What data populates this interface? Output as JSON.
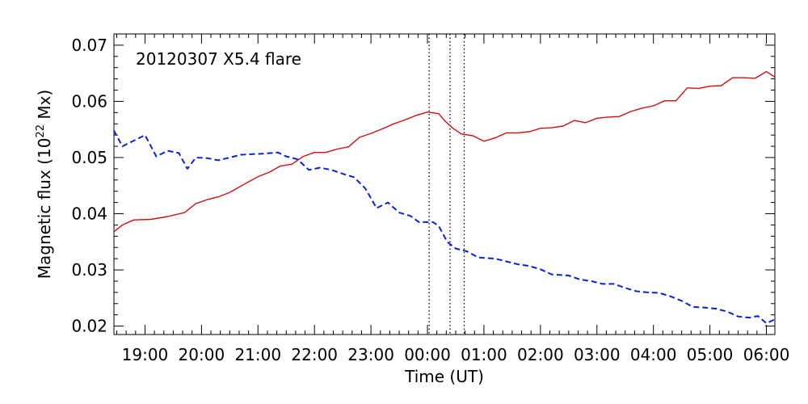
{
  "chart_data": {
    "type": "line",
    "title": "",
    "annotation": "20120307 X5.4 flare",
    "xlabel": "Time (UT)",
    "ylabel_main": "Magnetic flux (10",
    "ylabel_exp": "22",
    "ylabel_tail": " Mx)",
    "x_unit": "hours UT (continuing past midnight)",
    "xlim": [
      18.45,
      30.15
    ],
    "ylim": [
      0.0185,
      0.072
    ],
    "x_ticks": [
      19,
      20,
      21,
      22,
      23,
      24,
      25,
      26,
      27,
      28,
      29,
      30
    ],
    "x_tick_labels": [
      "19:00",
      "20:00",
      "21:00",
      "22:00",
      "23:00",
      "00:00",
      "01:00",
      "02:00",
      "03:00",
      "04:00",
      "05:00",
      "06:00"
    ],
    "y_ticks": [
      0.02,
      0.03,
      0.04,
      0.05,
      0.06,
      0.07
    ],
    "y_tick_labels": [
      "0.02",
      "0.03",
      "0.04",
      "0.05",
      "0.06",
      "0.07"
    ],
    "grid": false,
    "vertical_markers": [
      24.03,
      24.4,
      24.65
    ],
    "series": [
      {
        "color": "#d01010",
        "style": "solid",
        "points": [
          [
            18.45,
            0.0368
          ],
          [
            18.6,
            0.038
          ],
          [
            18.8,
            0.0389
          ],
          [
            19.1,
            0.039
          ],
          [
            19.4,
            0.0395
          ],
          [
            19.7,
            0.0402
          ],
          [
            19.9,
            0.0418
          ],
          [
            20.1,
            0.0425
          ],
          [
            20.3,
            0.043
          ],
          [
            20.5,
            0.0438
          ],
          [
            20.8,
            0.0455
          ],
          [
            21.0,
            0.0466
          ],
          [
            21.2,
            0.0474
          ],
          [
            21.4,
            0.0485
          ],
          [
            21.6,
            0.0488
          ],
          [
            21.8,
            0.0502
          ],
          [
            22.0,
            0.0509
          ],
          [
            22.2,
            0.0509
          ],
          [
            22.4,
            0.0515
          ],
          [
            22.6,
            0.0519
          ],
          [
            22.8,
            0.0536
          ],
          [
            23.0,
            0.0543
          ],
          [
            23.2,
            0.0551
          ],
          [
            23.4,
            0.056
          ],
          [
            23.6,
            0.0567
          ],
          [
            23.8,
            0.0575
          ],
          [
            24.0,
            0.0581
          ],
          [
            24.2,
            0.0578
          ],
          [
            24.3,
            0.0566
          ],
          [
            24.45,
            0.0552
          ],
          [
            24.6,
            0.0542
          ],
          [
            24.8,
            0.0539
          ],
          [
            25.0,
            0.0529
          ],
          [
            25.2,
            0.0535
          ],
          [
            25.4,
            0.0544
          ],
          [
            25.6,
            0.0544
          ],
          [
            25.8,
            0.0546
          ],
          [
            26.0,
            0.0552
          ],
          [
            26.2,
            0.0553
          ],
          [
            26.4,
            0.0556
          ],
          [
            26.6,
            0.0566
          ],
          [
            26.8,
            0.0562
          ],
          [
            27.0,
            0.057
          ],
          [
            27.2,
            0.0572
          ],
          [
            27.4,
            0.0573
          ],
          [
            27.6,
            0.0582
          ],
          [
            27.8,
            0.0588
          ],
          [
            28.0,
            0.0592
          ],
          [
            28.2,
            0.0601
          ],
          [
            28.4,
            0.0601
          ],
          [
            28.6,
            0.0624
          ],
          [
            28.8,
            0.0623
          ],
          [
            29.0,
            0.0627
          ],
          [
            29.2,
            0.0628
          ],
          [
            29.4,
            0.0642
          ],
          [
            29.6,
            0.0642
          ],
          [
            29.8,
            0.0641
          ],
          [
            30.0,
            0.0653
          ],
          [
            30.15,
            0.0643
          ]
        ]
      },
      {
        "color": "#0a22e0",
        "style": "dashed",
        "points": [
          [
            18.45,
            0.0548
          ],
          [
            18.6,
            0.052
          ],
          [
            18.8,
            0.053
          ],
          [
            19.0,
            0.054
          ],
          [
            19.2,
            0.0502
          ],
          [
            19.4,
            0.0512
          ],
          [
            19.6,
            0.0508
          ],
          [
            19.75,
            0.048
          ],
          [
            19.9,
            0.05
          ],
          [
            20.1,
            0.0499
          ],
          [
            20.3,
            0.0495
          ],
          [
            20.5,
            0.05
          ],
          [
            20.7,
            0.0505
          ],
          [
            20.9,
            0.0506
          ],
          [
            21.1,
            0.0507
          ],
          [
            21.35,
            0.0509
          ],
          [
            21.5,
            0.0502
          ],
          [
            21.7,
            0.0497
          ],
          [
            21.9,
            0.0478
          ],
          [
            22.1,
            0.0482
          ],
          [
            22.3,
            0.0478
          ],
          [
            22.5,
            0.0471
          ],
          [
            22.7,
            0.0465
          ],
          [
            22.9,
            0.0445
          ],
          [
            23.1,
            0.041
          ],
          [
            23.3,
            0.042
          ],
          [
            23.5,
            0.0402
          ],
          [
            23.7,
            0.0396
          ],
          [
            23.85,
            0.0385
          ],
          [
            24.1,
            0.0385
          ],
          [
            24.2,
            0.0378
          ],
          [
            24.35,
            0.035
          ],
          [
            24.5,
            0.0338
          ],
          [
            24.7,
            0.0333
          ],
          [
            24.9,
            0.0322
          ],
          [
            25.2,
            0.032
          ],
          [
            25.4,
            0.0315
          ],
          [
            25.6,
            0.031
          ],
          [
            25.8,
            0.0307
          ],
          [
            26.0,
            0.0301
          ],
          [
            26.2,
            0.0292
          ],
          [
            26.5,
            0.029
          ],
          [
            26.7,
            0.0283
          ],
          [
            26.9,
            0.028
          ],
          [
            27.1,
            0.0275
          ],
          [
            27.3,
            0.0275
          ],
          [
            27.5,
            0.0268
          ],
          [
            27.7,
            0.0262
          ],
          [
            27.9,
            0.026
          ],
          [
            28.1,
            0.0259
          ],
          [
            28.3,
            0.0253
          ],
          [
            28.5,
            0.0245
          ],
          [
            28.7,
            0.0234
          ],
          [
            28.9,
            0.0233
          ],
          [
            29.1,
            0.0231
          ],
          [
            29.3,
            0.0226
          ],
          [
            29.5,
            0.0217
          ],
          [
            29.7,
            0.0215
          ],
          [
            29.85,
            0.0218
          ],
          [
            30.0,
            0.0205
          ],
          [
            30.15,
            0.0212
          ]
        ]
      }
    ]
  }
}
